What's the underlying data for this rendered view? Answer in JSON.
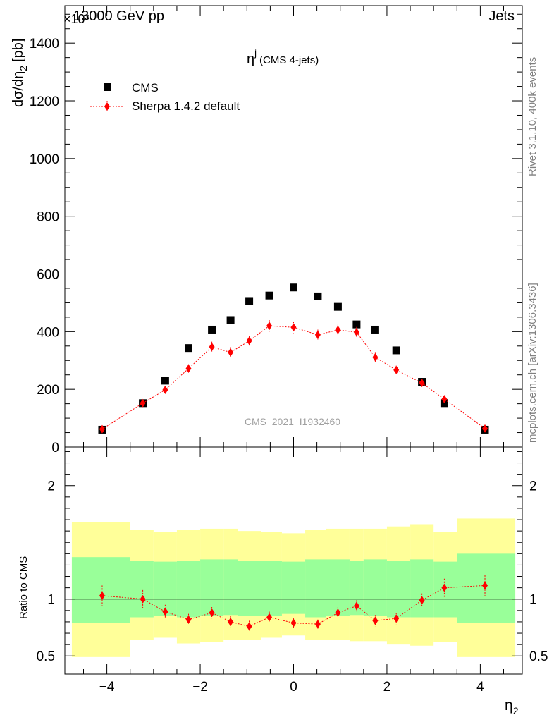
{
  "header": {
    "left": "13000 GeV pp",
    "right": "Jets",
    "exponent": "×10³"
  },
  "side_labels": {
    "rivet": "Rivet 3.1.10,  400k events",
    "mcplots": "mcplots.cern.ch [arXiv:1306.3436]"
  },
  "watermark": "CMS_2021_I1932460",
  "chart_data": [
    {
      "type": "scatter",
      "title": "η",
      "title_sup": "j",
      "subtitle": "(CMS 4-jets)",
      "ylabel": "dσ/dη",
      "ylabel_sub": "2",
      "ylabel_unit": "[pb]",
      "ylim": [
        0,
        1530
      ],
      "yticks": [
        0,
        200,
        400,
        600,
        800,
        1000,
        1200,
        1400
      ],
      "legend_position": "top-left",
      "series": [
        {
          "name": "CMS",
          "color": "#000000",
          "marker": "square",
          "x": [
            -4.1,
            -3.23,
            -2.75,
            -2.25,
            -1.75,
            -1.35,
            -0.95,
            -0.52,
            0.0,
            0.52,
            0.95,
            1.35,
            1.75,
            2.2,
            2.75,
            3.23,
            4.1
          ],
          "y": [
            60,
            152,
            230,
            343,
            407,
            440,
            506,
            525,
            553,
            522,
            486,
            425,
            407,
            335,
            226,
            152,
            60
          ]
        },
        {
          "name": "Sherpa 1.4.2 default",
          "color": "#ff0000",
          "marker": "diamond",
          "line": "dotted",
          "x": [
            -4.1,
            -3.23,
            -2.75,
            -2.25,
            -1.75,
            -1.35,
            -0.95,
            -0.52,
            0.0,
            0.52,
            0.95,
            1.35,
            1.75,
            2.2,
            2.75,
            3.23,
            4.1
          ],
          "y": [
            62,
            152,
            198,
            272,
            347,
            328,
            368,
            420,
            415,
            389,
            406,
            398,
            311,
            267,
            222,
            166,
            64
          ],
          "err": [
            8,
            10,
            13,
            15,
            18,
            18,
            18,
            20,
            20,
            18,
            18,
            18,
            18,
            15,
            13,
            12,
            8
          ]
        }
      ]
    },
    {
      "type": "scatter",
      "ylabel": "Ratio to CMS",
      "xlabel": "η",
      "xlabel_sub": "2",
      "xlim": [
        -4.9,
        4.9
      ],
      "ylim": [
        0.34,
        2.34
      ],
      "xticks": [
        -4,
        -2,
        0,
        2,
        4
      ],
      "xtick_labels": [
        "−4",
        "−2",
        "0",
        "2",
        "4"
      ],
      "yticks": [
        0.5,
        1,
        2
      ],
      "ytick_labels": [
        "0.5",
        "1",
        "2"
      ],
      "reference_line": 1,
      "bands": {
        "edges": [
          -4.75,
          -3.5,
          -3.0,
          -2.5,
          -2.0,
          -1.5,
          -1.2,
          -0.7,
          -0.25,
          0.25,
          0.7,
          1.2,
          1.5,
          2.0,
          2.5,
          3.0,
          3.5,
          4.75
        ],
        "inner_color": "#99ff99",
        "outer_color": "#ffff99",
        "inner_lo": [
          0.79,
          0.84,
          0.85,
          0.84,
          0.85,
          0.86,
          0.85,
          0.85,
          0.87,
          0.84,
          0.85,
          0.86,
          0.85,
          0.84,
          0.84,
          0.84,
          0.79
        ],
        "inner_hi": [
          1.37,
          1.34,
          1.33,
          1.34,
          1.35,
          1.35,
          1.34,
          1.34,
          1.33,
          1.35,
          1.35,
          1.34,
          1.35,
          1.34,
          1.35,
          1.33,
          1.4
        ],
        "outer_lo": [
          0.49,
          0.64,
          0.66,
          0.61,
          0.62,
          0.64,
          0.64,
          0.66,
          0.68,
          0.64,
          0.64,
          0.63,
          0.63,
          0.6,
          0.59,
          0.62,
          0.49
        ],
        "outer_hi": [
          1.68,
          1.61,
          1.59,
          1.61,
          1.62,
          1.62,
          1.6,
          1.59,
          1.58,
          1.61,
          1.62,
          1.62,
          1.62,
          1.64,
          1.66,
          1.59,
          1.71
        ]
      },
      "series": [
        {
          "name": "Sherpa 1.4.2 default",
          "color": "#ff0000",
          "marker": "diamond",
          "line": "dotted",
          "x": [
            -4.1,
            -3.23,
            -2.75,
            -2.25,
            -1.75,
            -1.35,
            -0.95,
            -0.52,
            0.0,
            0.52,
            0.95,
            1.35,
            1.75,
            2.2,
            2.75,
            3.23,
            4.1
          ],
          "y": [
            1.03,
            1.0,
            0.89,
            0.82,
            0.88,
            0.8,
            0.76,
            0.84,
            0.79,
            0.78,
            0.88,
            0.94,
            0.81,
            0.83,
            0.99,
            1.1,
            1.12
          ],
          "err": [
            0.09,
            0.08,
            0.06,
            0.05,
            0.05,
            0.05,
            0.05,
            0.05,
            0.04,
            0.04,
            0.05,
            0.05,
            0.05,
            0.05,
            0.06,
            0.08,
            0.09
          ]
        }
      ]
    }
  ]
}
